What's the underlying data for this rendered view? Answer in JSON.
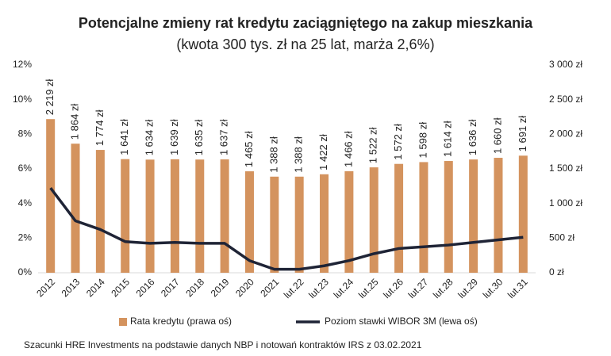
{
  "chart_data": {
    "type": "combo",
    "title": "Potencjalne zmieny rat kredytu zaciągniętego na zakup mieszkania",
    "subtitle": "(kwota 300 tys. zł na 25 lat, marża 2,6%)",
    "categories": [
      "2012",
      "2013",
      "2014",
      "2015",
      "2016",
      "2017",
      "2018",
      "2019",
      "2020",
      "2021",
      "lut.22",
      "lut.23",
      "lut.24",
      "lut.25",
      "lut.26",
      "lut.27",
      "lut.28",
      "lut.29",
      "lut.30",
      "lut.31"
    ],
    "series": [
      {
        "name": "Rata kredytu (prawa oś)",
        "type": "bar",
        "axis": "y2",
        "color": "#d4935e",
        "values": [
          2219,
          1864,
          1774,
          1641,
          1634,
          1639,
          1635,
          1637,
          1465,
          1388,
          1388,
          1422,
          1466,
          1522,
          1572,
          1598,
          1614,
          1636,
          1660,
          1691
        ],
        "value_labels": [
          "2 219 zł",
          "1 864 zł",
          "1 774 zł",
          "1 641 zł",
          "1 634 zł",
          "1 639 zł",
          "1 635 zł",
          "1 637 zł",
          "1 465 zł",
          "1 388 zł",
          "1 388 zł",
          "1 422 zł",
          "1 466 zł",
          "1 522 zł",
          "1 572 zł",
          "1 598 zł",
          "1 614 zł",
          "1 636 zł",
          "1 660 zł",
          "1 691 zł"
        ]
      },
      {
        "name": "Poziom stawki WIBOR 3M (lewa oś)",
        "type": "line",
        "axis": "y",
        "color": "#1f2436",
        "values": [
          4.9,
          3.0,
          2.5,
          1.8,
          1.7,
          1.75,
          1.7,
          1.7,
          0.7,
          0.2,
          0.2,
          0.4,
          0.7,
          1.1,
          1.4,
          1.5,
          1.6,
          1.75,
          1.9,
          2.05
        ]
      }
    ],
    "ylim": [
      0,
      12
    ],
    "yticks": [
      {
        "value": 0,
        "label": "0%"
      },
      {
        "value": 2,
        "label": "2%"
      },
      {
        "value": 4,
        "label": "4%"
      },
      {
        "value": 6,
        "label": "6%"
      },
      {
        "value": 8,
        "label": "8%"
      },
      {
        "value": 10,
        "label": "10%"
      },
      {
        "value": 12,
        "label": "12%"
      }
    ],
    "y2lim": [
      0,
      3000
    ],
    "y2ticks": [
      {
        "value": 0,
        "label": "0 zł"
      },
      {
        "value": 500,
        "label": "500 zł"
      },
      {
        "value": 1000,
        "label": "1 000 zł"
      },
      {
        "value": 1500,
        "label": "1 500 zł"
      },
      {
        "value": 2000,
        "label": "2 000 zł"
      },
      {
        "value": 2500,
        "label": "2 500 zł"
      },
      {
        "value": 3000,
        "label": "3 000 zł"
      }
    ],
    "grid": false,
    "legend": "bottom",
    "source": "Szacunki HRE Investments na podstawie danych NBP i notowań kontraktów IRS z 03.02.2021"
  }
}
